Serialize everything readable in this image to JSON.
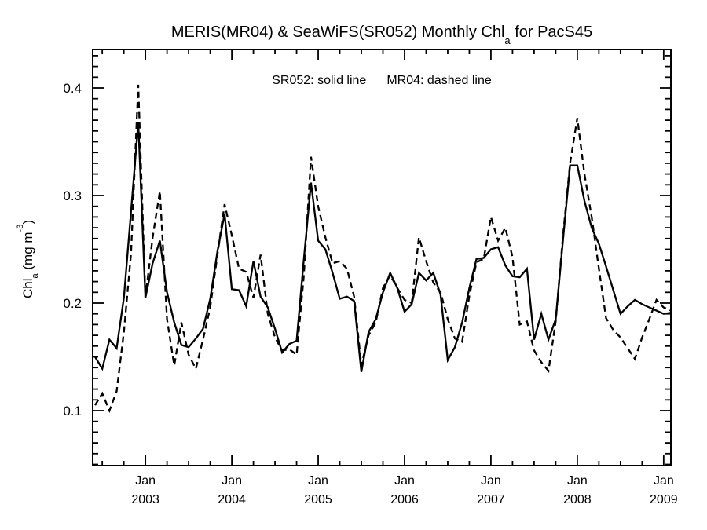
{
  "title": {
    "prefix": "MERIS(MR04) & SeaWiFS(SR052) Monthly Chl",
    "sub": "a",
    "suffix": " for PacS45"
  },
  "legend": {
    "sr052": "SR052: solid line",
    "mr04": "MR04: dashed line"
  },
  "y_axis": {
    "label_prefix": "Chl",
    "label_sub": "a",
    "label_mid": " (mg m",
    "label_sup": "-3",
    "label_suffix": ")",
    "tick_labels": [
      "0.1",
      "0.2",
      "0.3",
      "0.4"
    ]
  },
  "x_axis": {
    "month_label": "Jan",
    "years": [
      "2003",
      "2004",
      "2005",
      "2006",
      "2007",
      "2008",
      "2009"
    ]
  },
  "colors": {
    "line": "#000000",
    "background": "#ffffff"
  },
  "chart_data": {
    "type": "line",
    "title": "MERIS(MR04) & SeaWiFS(SR052) Monthly Chl_a for PacS45",
    "xlabel": "",
    "ylabel": "Chl_a (mg m^-3)",
    "x_start_month": "2002-06",
    "x_end_month": "2009-02",
    "x_frequency": "monthly",
    "ylim": [
      0.049,
      0.436
    ],
    "yticks_major": [
      0.1,
      0.2,
      0.3,
      0.4
    ],
    "ytick_minor_step": 0.01,
    "xticks_major_at": "January of each year, 2003 through 2009",
    "xtick_minor_interval_months": 3,
    "grid": false,
    "legend_position": "top-center above plot",
    "series": [
      {
        "name": "SR052",
        "style": "solid",
        "color": "#000000",
        "values": [
          0.15,
          0.139,
          0.166,
          0.158,
          0.205,
          0.285,
          0.368,
          0.205,
          0.237,
          0.258,
          0.21,
          0.182,
          0.161,
          0.159,
          0.167,
          0.176,
          0.204,
          0.248,
          0.283,
          0.213,
          0.212,
          0.197,
          0.239,
          0.206,
          0.196,
          0.176,
          0.154,
          0.162,
          0.165,
          0.24,
          0.312,
          0.258,
          0.25,
          0.228,
          0.204,
          0.206,
          0.202,
          0.136,
          0.173,
          0.185,
          0.21,
          0.228,
          0.214,
          0.192,
          0.199,
          0.228,
          0.221,
          0.228,
          0.208,
          0.147,
          0.159,
          0.182,
          0.214,
          0.241,
          0.242,
          0.25,
          0.252,
          0.235,
          0.225,
          0.224,
          0.232,
          0.166,
          0.19,
          0.166,
          0.185,
          0.258,
          0.328,
          0.328,
          0.295,
          0.27,
          0.255,
          0.234,
          0.212,
          0.19,
          0.197,
          0.203,
          0.199,
          0.196,
          0.193,
          0.19,
          0.191
        ]
      },
      {
        "name": "MR04",
        "style": "dashed",
        "color": "#000000",
        "values": [
          0.105,
          0.116,
          0.1,
          0.118,
          0.173,
          0.246,
          0.403,
          0.205,
          0.261,
          0.304,
          0.185,
          0.142,
          0.182,
          0.152,
          0.139,
          0.166,
          0.196,
          0.245,
          0.292,
          0.263,
          0.232,
          0.229,
          0.205,
          0.245,
          0.19,
          0.168,
          0.156,
          0.157,
          0.152,
          0.225,
          0.336,
          0.29,
          0.261,
          0.237,
          0.239,
          0.232,
          0.206,
          0.142,
          0.17,
          0.182,
          0.214,
          0.226,
          0.214,
          0.203,
          0.2,
          0.261,
          0.239,
          0.219,
          0.21,
          0.185,
          0.167,
          0.164,
          0.207,
          0.238,
          0.241,
          0.28,
          0.258,
          0.27,
          0.243,
          0.18,
          0.183,
          0.156,
          0.145,
          0.137,
          0.183,
          0.262,
          0.33,
          0.372,
          0.32,
          0.28,
          0.232,
          0.186,
          0.175,
          0.168,
          0.158,
          0.148,
          0.168,
          0.185,
          0.203,
          0.196,
          0.193
        ]
      }
    ]
  }
}
